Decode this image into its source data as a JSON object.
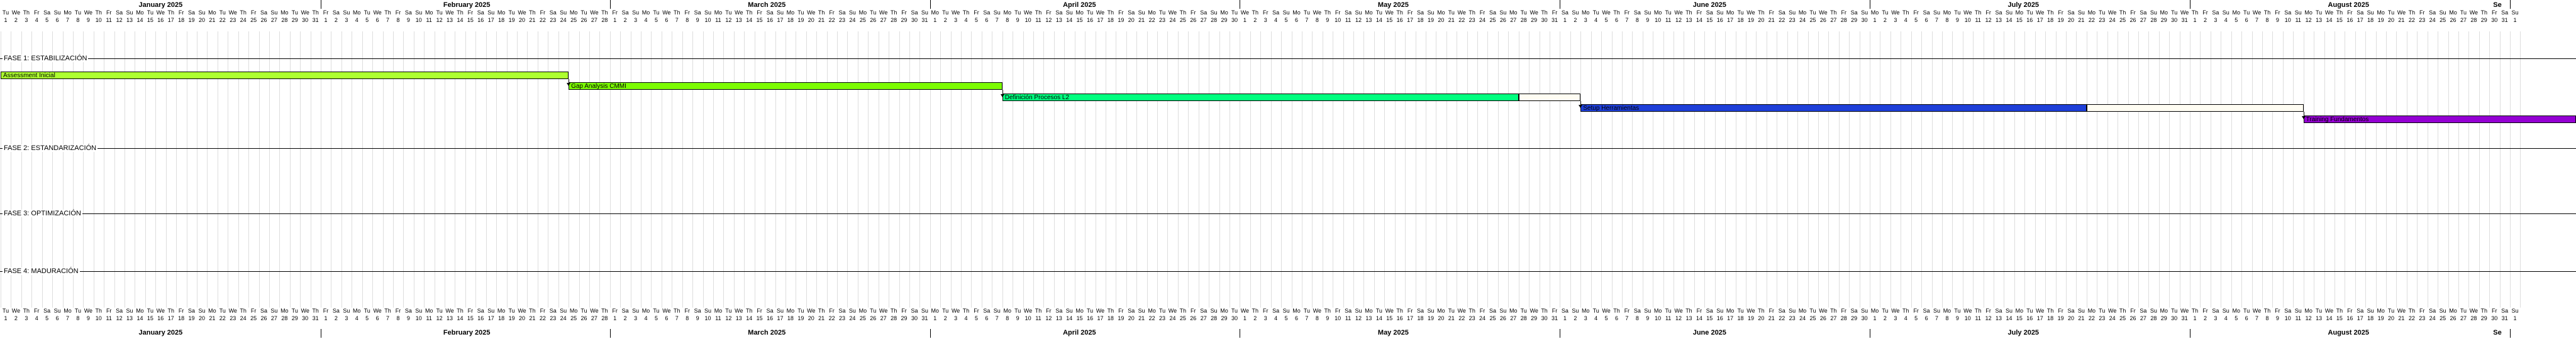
{
  "calendar": {
    "months": [
      {
        "label": "January 2025",
        "days": 31,
        "first_weekday": 2
      },
      {
        "label": "February 2025",
        "days": 28,
        "first_weekday": 5
      },
      {
        "label": "March 2025",
        "days": 31,
        "first_weekday": 5
      },
      {
        "label": "April 2025",
        "days": 30,
        "first_weekday": 1
      },
      {
        "label": "May 2025",
        "days": 31,
        "first_weekday": 3
      },
      {
        "label": "June 2025",
        "days": 30,
        "first_weekday": 6
      },
      {
        "label": "July 2025",
        "days": 31,
        "first_weekday": 1
      },
      {
        "label": "August 2025",
        "days": 31,
        "first_weekday": 4
      },
      {
        "label": "Se",
        "days": 1,
        "first_weekday": 0
      }
    ],
    "weekday_abbr": [
      "Su",
      "Mo",
      "Tu",
      "We",
      "Th",
      "Fr",
      "Sa"
    ]
  },
  "phases": [
    {
      "label": "FASE 1: ESTABILIZACIÓN"
    },
    {
      "label": "FASE 2: ESTANDARIZACIÓN"
    },
    {
      "label": "FASE 3: OPTIMIZACIÓN"
    },
    {
      "label": "FASE 4: MADURACIÓN"
    }
  ],
  "tasks": [
    {
      "label": "Assessment Inicial",
      "start": "2025-01-01",
      "end": "2025-02-25",
      "color": "#adff2f"
    },
    {
      "label": "Gap Analysis CMMI",
      "start": "2025-02-25",
      "end": "2025-04-08",
      "color": "#7cfc00"
    },
    {
      "label": "Definición Procesos L2",
      "start": "2025-04-08",
      "end": "2025-05-28",
      "color": "#00ff7f"
    },
    {
      "label": "Setup Herramientas",
      "start": "2025-06-03",
      "end": "2025-07-22",
      "color": "#1e3fd9"
    },
    {
      "label": "Training Fundamentos",
      "start": "2025-08-12",
      "end": "2025-09-10",
      "color": "#9400d3"
    }
  ],
  "colors": {
    "grid": "#dddddd",
    "ghost_fill": "#fffdf3"
  }
}
